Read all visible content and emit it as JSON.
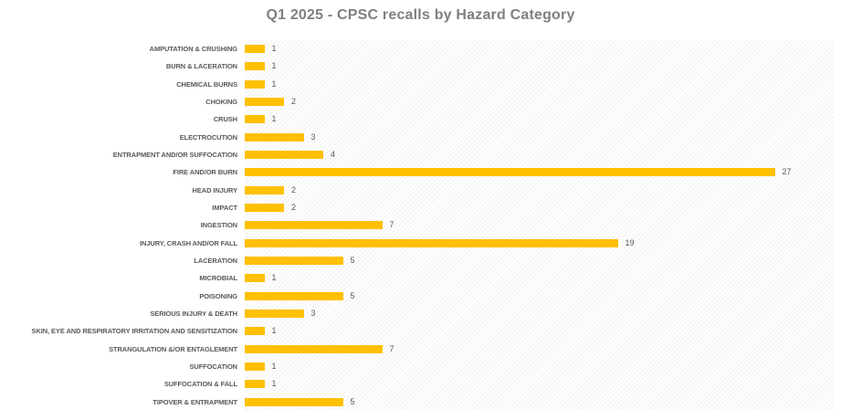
{
  "chart_data": {
    "type": "bar",
    "orientation": "horizontal",
    "title": "Q1 2025 - CPSC recalls by Hazard Category",
    "categories": [
      "AMPUTATION & CRUSHING",
      "BURN & LACERATION",
      "CHEMICAL BURNS",
      "CHOKING",
      "CRUSH",
      "ELECTROCUTION",
      "ENTRAPMENT AND/OR SUFFOCATION",
      "FIRE AND/OR BURN",
      "HEAD INJURY",
      "IMPACT",
      "INGESTION",
      "INJURY, CRASH AND/OR FALL",
      "LACERATION",
      "MICROBIAL",
      "POISONING",
      "SERIOUS INJURY & DEATH",
      "SKIN, EYE AND RESPIRATORY IRRITATION AND SENSITIZATION",
      "STRANGULATION &/OR ENTAGLEMENT",
      "SUFFOCATION",
      "SUFFOCATION & FALL",
      "TIPOVER & ENTRAPMENT"
    ],
    "values": [
      1,
      1,
      1,
      2,
      1,
      3,
      4,
      27,
      2,
      2,
      7,
      19,
      5,
      1,
      5,
      3,
      1,
      7,
      1,
      1,
      5
    ],
    "xlim": [
      0,
      30
    ],
    "data_labels": true,
    "legend": false,
    "gridlines": false,
    "bar_color": "#FFC000",
    "label_color": "#595959",
    "value_color": "#595959",
    "title_color": "#7F7F7F",
    "plot_background": "light-diagonal-hatch"
  }
}
